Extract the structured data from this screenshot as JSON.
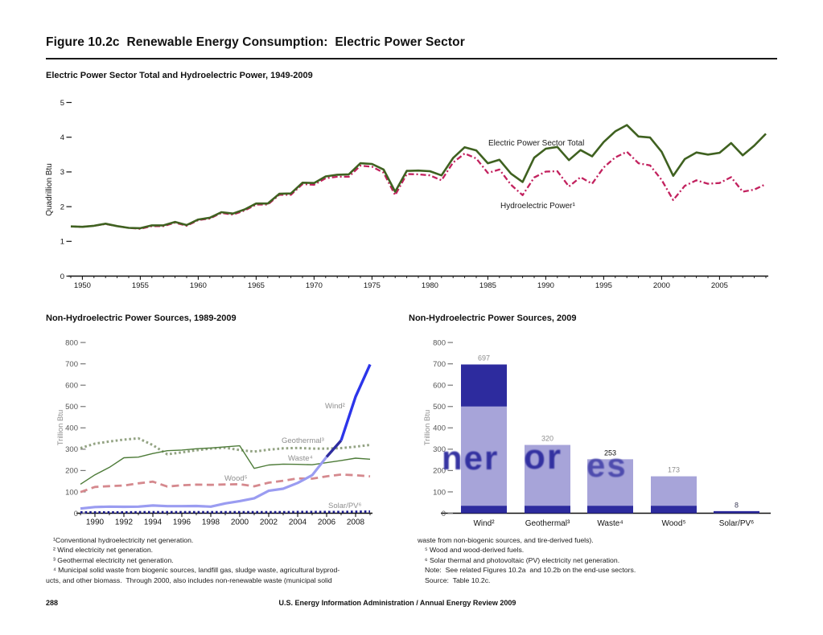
{
  "page": {
    "title": "Figure 10.2c  Renewable Energy Consumption:  Electric Power Sector",
    "page_number": "288",
    "footer": "U.S. Energy Information Administration / Annual Energy Review 2009"
  },
  "watermark": {
    "fragments": [
      "ner",
      "or",
      "es"
    ]
  },
  "footnotes": {
    "left": [
      "¹Conventional hydroelectricity net generation.",
      "² Wind electricity net generation.",
      "³ Geothermal electricity net generation.",
      "⁴ Municipal solid waste from biogenic sources, landfill gas, sludge waste, agricultural byprod-",
      "ucts, and other biomass.  Through 2000, also includes non-renewable waste (municipal solid"
    ],
    "right": [
      "waste from non-biogenic sources, and tire-derived fuels).",
      "⁵ Wood and wood-derived fuels.",
      "⁶ Solar thermal and photovoltaic (PV) electricity net generation.",
      "Note:  See related Figures 10.2a  and 10.2b on the end-use sectors.",
      "Source:  Table 10.2c."
    ]
  },
  "chart_data": [
    {
      "type": "line",
      "title": "Electric Power Sector Total and Hydroelectric Power, 1949-2009",
      "ylabel": "Quadrillion Btu",
      "ylim": [
        0,
        5
      ],
      "yticks": [
        0,
        1,
        2,
        3,
        4,
        5
      ],
      "xticks": [
        1950,
        1955,
        1960,
        1965,
        1970,
        1975,
        1980,
        1985,
        1990,
        1995,
        2000,
        2005
      ],
      "grid": false,
      "legend_position": "inline-annotations",
      "x": [
        1949,
        1950,
        1951,
        1952,
        1953,
        1954,
        1955,
        1956,
        1957,
        1958,
        1959,
        1960,
        1961,
        1962,
        1963,
        1964,
        1965,
        1966,
        1967,
        1968,
        1969,
        1970,
        1971,
        1972,
        1973,
        1974,
        1975,
        1976,
        1977,
        1978,
        1979,
        1980,
        1981,
        1982,
        1983,
        1984,
        1985,
        1986,
        1987,
        1988,
        1989,
        1990,
        1991,
        1992,
        1993,
        1994,
        1995,
        1996,
        1997,
        1998,
        1999,
        2000,
        2001,
        2002,
        2003,
        2004,
        2005,
        2006,
        2007,
        2008,
        2009
      ],
      "series": [
        {
          "name": "Electric Power Sector Total",
          "color": "#3f6120",
          "line_style": "solid",
          "values": [
            1.43,
            1.42,
            1.45,
            1.51,
            1.44,
            1.39,
            1.38,
            1.46,
            1.46,
            1.56,
            1.47,
            1.63,
            1.68,
            1.84,
            1.8,
            1.92,
            2.09,
            2.09,
            2.37,
            2.38,
            2.69,
            2.68,
            2.87,
            2.92,
            2.93,
            3.25,
            3.23,
            3.07,
            2.43,
            3.03,
            3.04,
            3.02,
            2.9,
            3.4,
            3.71,
            3.62,
            3.25,
            3.35,
            2.95,
            2.71,
            3.41,
            3.67,
            3.72,
            3.34,
            3.63,
            3.45,
            3.86,
            4.17,
            4.35,
            4.02,
            3.99,
            3.58,
            2.89,
            3.37,
            3.56,
            3.5,
            3.55,
            3.83,
            3.48,
            3.76,
            4.1
          ]
        },
        {
          "name": "Hydroelectric Power¹",
          "color": "#c2215e",
          "line_style": "dash-dot",
          "values": [
            1.43,
            1.42,
            1.45,
            1.5,
            1.44,
            1.39,
            1.36,
            1.44,
            1.44,
            1.54,
            1.45,
            1.61,
            1.66,
            1.82,
            1.77,
            1.89,
            2.06,
            2.06,
            2.34,
            2.34,
            2.65,
            2.63,
            2.82,
            2.86,
            2.86,
            3.18,
            3.15,
            2.98,
            2.33,
            2.94,
            2.93,
            2.9,
            2.76,
            3.27,
            3.53,
            3.39,
            2.97,
            3.07,
            2.63,
            2.33,
            2.84,
            3.01,
            3.02,
            2.58,
            2.85,
            2.66,
            3.13,
            3.42,
            3.58,
            3.25,
            3.19,
            2.77,
            2.19,
            2.6,
            2.76,
            2.66,
            2.68,
            2.85,
            2.43,
            2.49,
            2.65
          ]
        }
      ]
    },
    {
      "type": "line",
      "title": "Non-Hydroelectric Power Sources, 1989-2009",
      "ylabel": "Trillion Btu",
      "ylim": [
        0,
        800
      ],
      "yticks": [
        0,
        100,
        200,
        300,
        400,
        500,
        600,
        700,
        800
      ],
      "xticks": [
        1990,
        1992,
        1994,
        1996,
        1998,
        2000,
        2002,
        2004,
        2006,
        2008
      ],
      "grid": false,
      "legend_position": "inline-annotations",
      "x": [
        1989,
        1990,
        1991,
        1992,
        1993,
        1994,
        1995,
        1996,
        1997,
        1998,
        1999,
        2000,
        2001,
        2002,
        2003,
        2004,
        2005,
        2006,
        2007,
        2008,
        2009
      ],
      "series": [
        {
          "name": "Wind²",
          "color": "#9a9cf1",
          "color_end": "#2c35ea",
          "line_style": "solid",
          "values": [
            22,
            29,
            31,
            30,
            31,
            36,
            33,
            33,
            34,
            31,
            46,
            57,
            70,
            105,
            115,
            142,
            178,
            264,
            341,
            546,
            697
          ]
        },
        {
          "name": "Geothermal³",
          "color": "#93a383",
          "line_style": "dotted",
          "values": [
            305,
            326,
            336,
            345,
            351,
            319,
            276,
            285,
            295,
            303,
            307,
            296,
            289,
            298,
            304,
            306,
            303,
            303,
            305,
            312,
            320
          ]
        },
        {
          "name": "Waste⁴",
          "color": "#4d7b38",
          "line_style": "solid",
          "values": [
            136,
            180,
            215,
            260,
            263,
            280,
            293,
            296,
            302,
            306,
            311,
            316,
            210,
            226,
            230,
            229,
            227,
            237,
            247,
            258,
            253
          ]
        },
        {
          "name": "Wood⁵",
          "color": "#d5898e",
          "line_style": "dashed",
          "values": [
            99,
            123,
            127,
            130,
            140,
            148,
            125,
            131,
            134,
            133,
            135,
            136,
            126,
            143,
            152,
            163,
            162,
            173,
            181,
            178,
            173
          ]
        },
        {
          "name": "Solar/PV⁶",
          "color": "#1c1c8f",
          "line_style": "dotted",
          "values": [
            4,
            4,
            4,
            4,
            5,
            5,
            5,
            5,
            5,
            5,
            5,
            5,
            5,
            5,
            5,
            6,
            6,
            6,
            6,
            7,
            8
          ]
        }
      ]
    },
    {
      "type": "bar",
      "title": "Non-Hydroelectric Power Sources, 2009",
      "ylabel": "Trillion Btu",
      "ylim": [
        0,
        800
      ],
      "yticks": [
        0,
        100,
        200,
        300,
        400,
        500,
        600,
        700,
        800
      ],
      "grid": false,
      "categories": [
        "Wind²",
        "Geothermal³",
        "Waste⁴",
        "Wood⁵",
        "Solar/PV⁶"
      ],
      "values": [
        697,
        320,
        253,
        173,
        8
      ],
      "value_labels": [
        "697",
        "320",
        "253",
        "173",
        "8"
      ],
      "bar_color": "#a7a4d9",
      "accent_color": "#2d2b9e"
    }
  ]
}
